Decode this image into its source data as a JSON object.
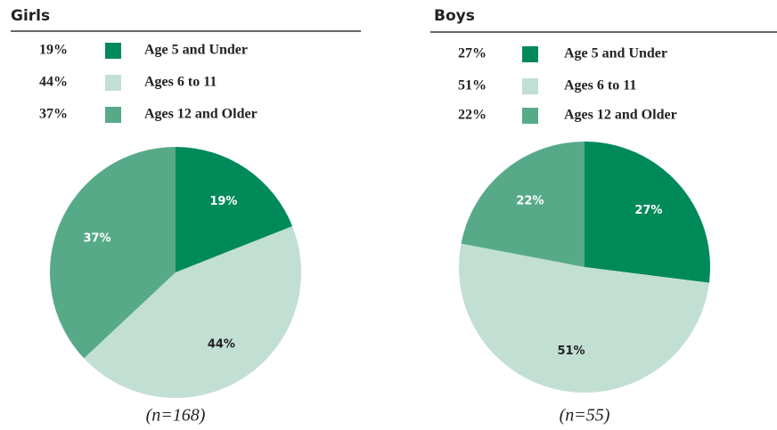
{
  "chart_data": [
    {
      "type": "pie",
      "title": "Girls",
      "categories": [
        "Age 5 and Under",
        "Ages 6 to 11",
        "Ages 12 and Older"
      ],
      "values": [
        19,
        44,
        37
      ],
      "value_labels": [
        "19%",
        "44%",
        "37%"
      ],
      "colors": [
        "#008a5a",
        "#c2dfd3",
        "#57aa88"
      ],
      "note": "(n=168)"
    },
    {
      "type": "pie",
      "title": "Boys",
      "categories": [
        "Age 5 and Under",
        "Ages 6 to 11",
        "Ages 12 and Older"
      ],
      "values": [
        27,
        51,
        22
      ],
      "value_labels": [
        "27%",
        "51%",
        "22%"
      ],
      "colors": [
        "#008a5a",
        "#c2dfd3",
        "#57aa88"
      ],
      "note": "(n=55)"
    }
  ]
}
